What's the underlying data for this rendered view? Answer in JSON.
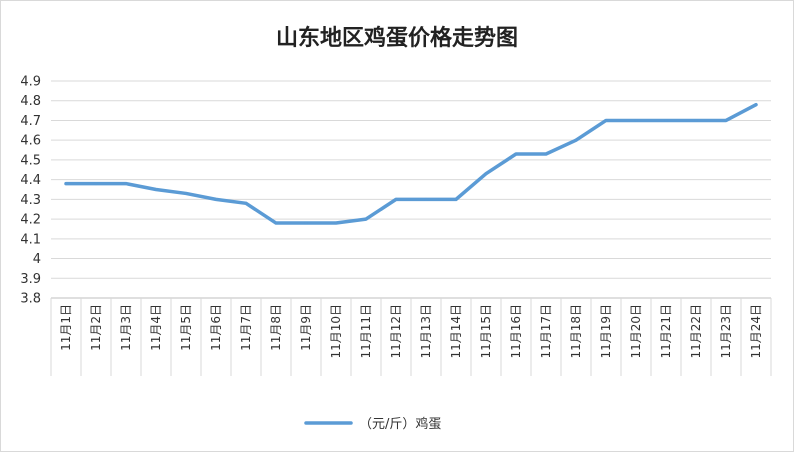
{
  "chart_data": {
    "type": "line",
    "title": "山东地区鸡蛋价格走势图",
    "xlabel": "",
    "ylabel": "",
    "categories": [
      "11月1日",
      "11月2日",
      "11月3日",
      "11月4日",
      "11月5日",
      "11月6日",
      "11月7日",
      "11月8日",
      "11月9日",
      "11月10日",
      "11月11日",
      "11月12日",
      "11月13日",
      "11月14日",
      "11月15日",
      "11月16日",
      "11月17日",
      "11月18日",
      "11月19日",
      "11月20日",
      "11月21日",
      "11月22日",
      "11月23日",
      "11月24日"
    ],
    "series": [
      {
        "name": "（元/斤）鸡蛋",
        "color": "#5b9bd5",
        "values": [
          4.38,
          4.38,
          4.38,
          4.35,
          4.33,
          4.3,
          4.28,
          4.18,
          4.18,
          4.18,
          4.2,
          4.3,
          4.3,
          4.3,
          4.43,
          4.53,
          4.53,
          4.6,
          4.7,
          4.7,
          4.7,
          4.7,
          4.7,
          4.78
        ]
      }
    ],
    "ylim": [
      3.8,
      4.9
    ],
    "yticks": [
      "3.8",
      "3.9",
      "4",
      "4.1",
      "4.2",
      "4.3",
      "4.4",
      "4.5",
      "4.6",
      "4.7",
      "4.8",
      "4.9"
    ],
    "grid": true,
    "legend_position": "bottom"
  }
}
